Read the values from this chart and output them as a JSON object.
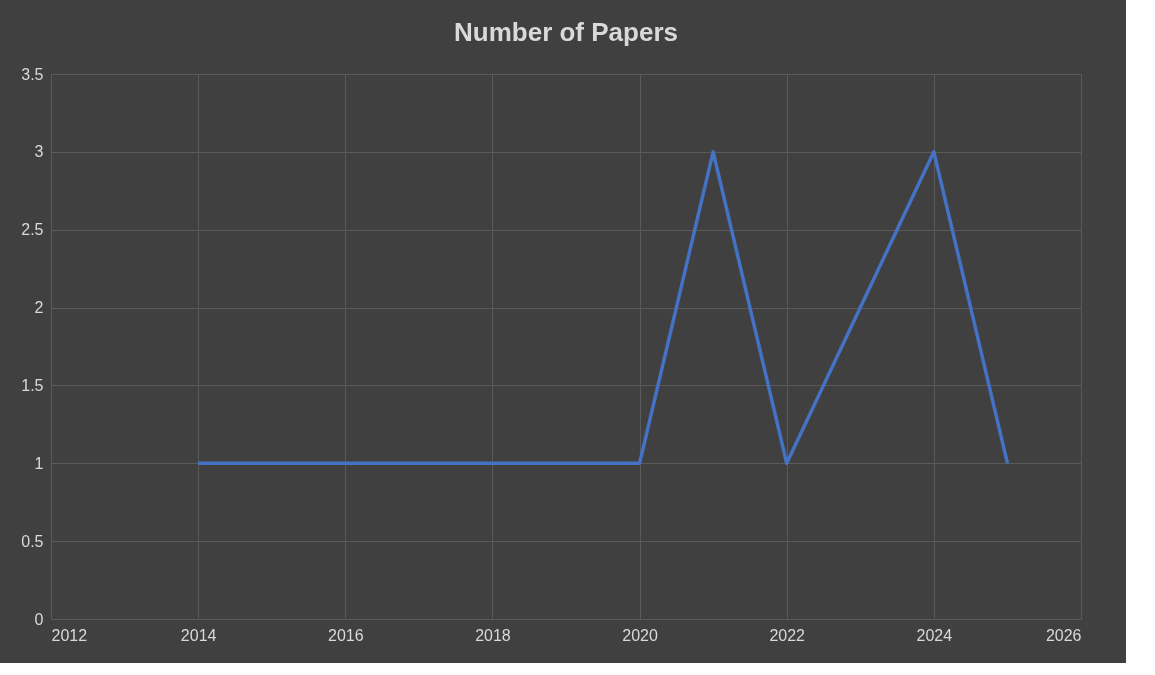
{
  "chart_data": {
    "type": "line",
    "title": "Number of Papers",
    "x": [
      2014,
      2020,
      2021,
      2022,
      2024,
      2025
    ],
    "series": [
      {
        "color": "#4472c4",
        "values": [
          1,
          1,
          3,
          1,
          3,
          1
        ]
      }
    ],
    "xlim": [
      2012,
      2026
    ],
    "xticks": [
      2012,
      2014,
      2016,
      2018,
      2020,
      2022,
      2024,
      2026
    ],
    "ylim": [
      0,
      3.5
    ],
    "yticks": [
      0,
      0.5,
      1,
      1.5,
      2,
      2.5,
      3,
      3.5
    ],
    "grid": true,
    "marker": "none",
    "line_style": "solid"
  }
}
